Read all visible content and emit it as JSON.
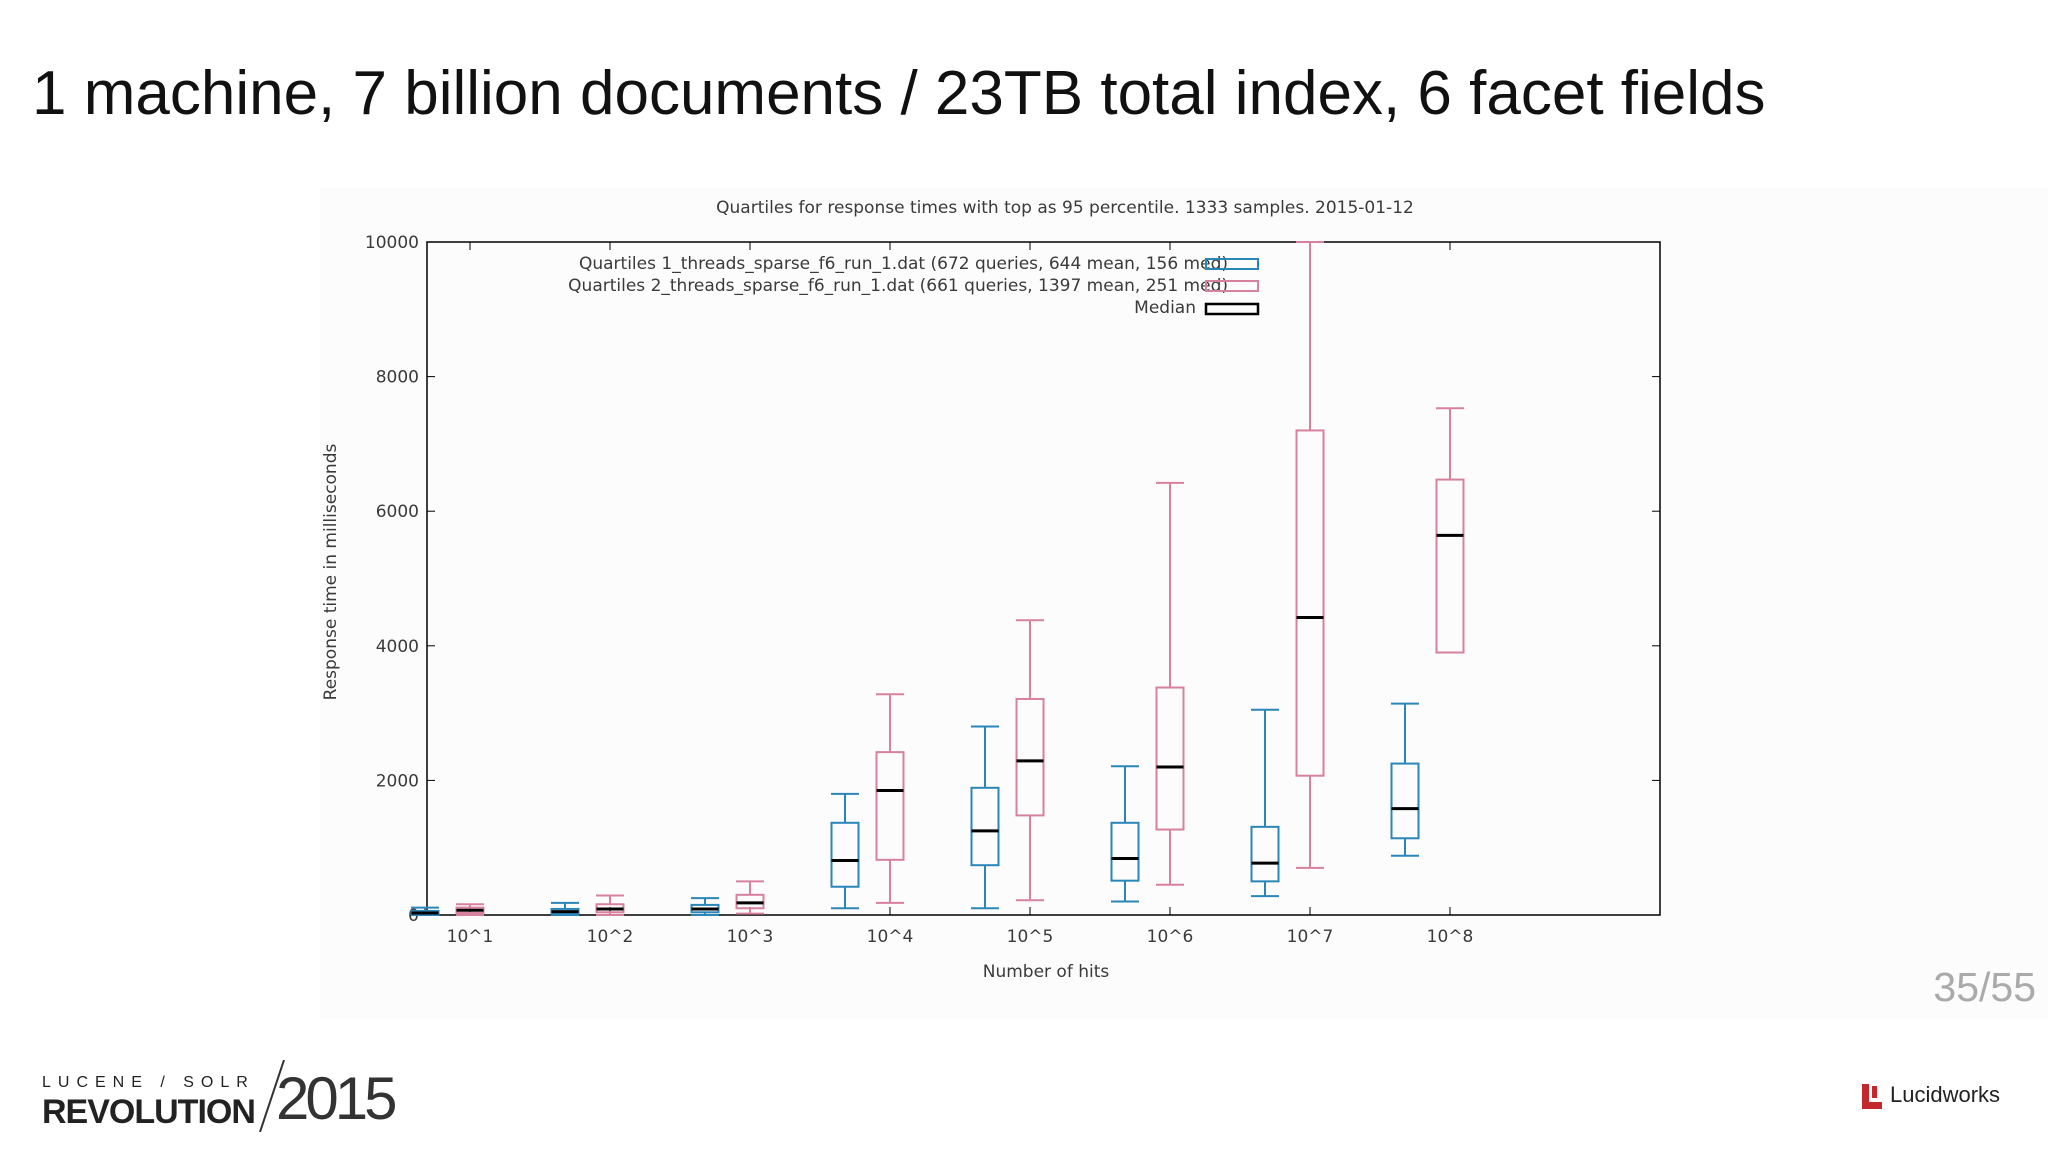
{
  "slide": {
    "title": "1 machine, 7 billion documents / 23TB total index, 6 facet fields",
    "page_number": "35/55"
  },
  "footer": {
    "conference_line1": "LUCENE / SOLR",
    "conference_line2": "REVOLUTION",
    "conference_year": "2015",
    "brand_name": "Lucidworks"
  },
  "colors": {
    "series1": "#2b86b8",
    "series2": "#d6819e",
    "median": "#000000",
    "axis": "#000000"
  },
  "chart_data": {
    "type": "boxplot",
    "title": "Quartiles for response times with top as 95 percentile. 1333 samples. 2015-01-12",
    "xlabel": "Number of hits",
    "ylabel": "Response time in milliseconds",
    "ylim": [
      0,
      10000
    ],
    "yticks": [
      0,
      2000,
      4000,
      6000,
      8000,
      10000
    ],
    "ytick_labels": [
      "0",
      "2000",
      "4000",
      "6000",
      "8000",
      "10000"
    ],
    "categories": [
      "10^1",
      "10^2",
      "10^3",
      "10^4",
      "10^5",
      "10^6",
      "10^7",
      "10^8"
    ],
    "legend_position": "top",
    "grid": false,
    "series": [
      {
        "name": "Quartiles 1_threads_sparse_f6_run_1.dat (672 queries, 644 mean, 156 med)",
        "boxes": [
          {
            "category": "10^1",
            "min": 0,
            "q1": 10,
            "median": 30,
            "q3": 60,
            "max": 110
          },
          {
            "category": "10^2",
            "min": 0,
            "q1": 20,
            "median": 50,
            "q3": 90,
            "max": 180
          },
          {
            "category": "10^3",
            "min": 0,
            "q1": 40,
            "median": 90,
            "q3": 150,
            "max": 250
          },
          {
            "category": "10^4",
            "min": 100,
            "q1": 420,
            "median": 810,
            "q3": 1370,
            "max": 1800
          },
          {
            "category": "10^5",
            "min": 100,
            "q1": 740,
            "median": 1250,
            "q3": 1890,
            "max": 2800
          },
          {
            "category": "10^6",
            "min": 200,
            "q1": 510,
            "median": 840,
            "q3": 1370,
            "max": 2210
          },
          {
            "category": "10^7",
            "min": 280,
            "q1": 500,
            "median": 770,
            "q3": 1310,
            "max": 3050
          },
          {
            "category": "10^8",
            "min": 880,
            "q1": 1140,
            "median": 1580,
            "q3": 2250,
            "max": 3140
          }
        ]
      },
      {
        "name": "Quartiles 2_threads_sparse_f6_run_1.dat (661 queries, 1397 mean, 251 med)",
        "boxes": [
          {
            "category": "10^1",
            "min": 0,
            "q1": 30,
            "median": 70,
            "q3": 110,
            "max": 160
          },
          {
            "category": "10^2",
            "min": 0,
            "q1": 40,
            "median": 90,
            "q3": 160,
            "max": 290
          },
          {
            "category": "10^3",
            "min": 20,
            "q1": 100,
            "median": 180,
            "q3": 300,
            "max": 500
          },
          {
            "category": "10^4",
            "min": 180,
            "q1": 820,
            "median": 1850,
            "q3": 2420,
            "max": 3280
          },
          {
            "category": "10^5",
            "min": 220,
            "q1": 1480,
            "median": 2290,
            "q3": 3210,
            "max": 4380
          },
          {
            "category": "10^6",
            "min": 450,
            "q1": 1270,
            "median": 2200,
            "q3": 3380,
            "max": 6420
          },
          {
            "category": "10^7",
            "min": 700,
            "q1": 2070,
            "median": 4420,
            "q3": 7200,
            "max": 10000
          },
          {
            "category": "10^8",
            "min": 3900,
            "q1": 3900,
            "median": 5640,
            "q3": 6470,
            "max": 7530
          }
        ]
      }
    ],
    "median_legend_label": "Median"
  }
}
